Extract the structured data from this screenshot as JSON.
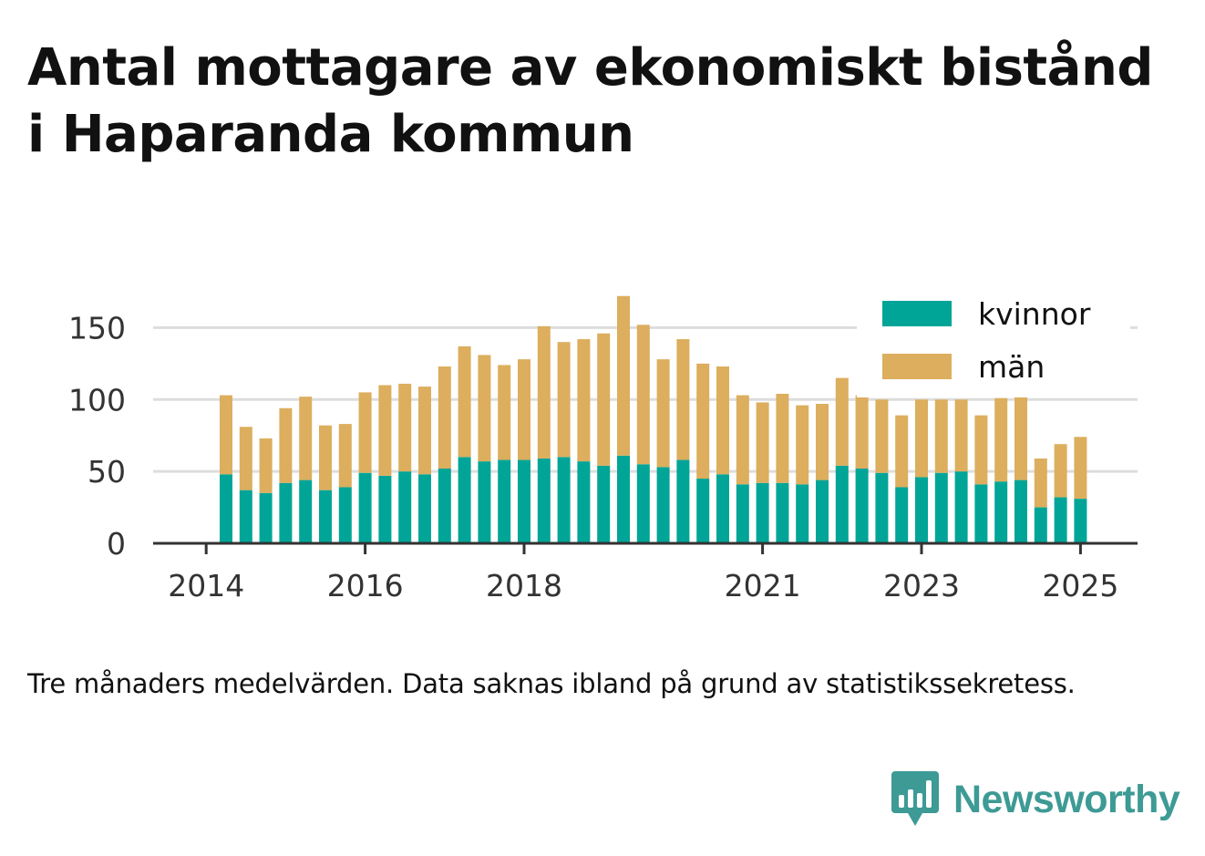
{
  "title": "Antal mottagare av ekonomiskt bistånd i Haparanda kommun",
  "note": "Tre månaders medelvärden. Data saknas ibland på grund av statistikssekretess.",
  "brand": {
    "name": "Newsworthy",
    "icon": "newsworthy-logo-icon",
    "color": "#3d9a95"
  },
  "chart_data": {
    "type": "bar",
    "stacked": true,
    "x_ticks": [
      "2014",
      "2016",
      "2018",
      "2021",
      "2023",
      "2025"
    ],
    "y_ticks": [
      0,
      50,
      100,
      150
    ],
    "ylim": [
      0,
      175
    ],
    "grid": true,
    "legend_position": "top-right",
    "series": [
      {
        "name": "kvinnor",
        "color": "#00a598",
        "values": [
          48,
          37,
          35,
          42,
          44,
          37,
          39,
          49,
          47,
          50,
          48,
          52,
          60,
          57,
          58,
          58,
          59,
          60,
          57,
          54,
          61,
          55,
          53,
          58,
          45,
          48,
          41,
          42,
          42,
          41,
          44,
          54,
          52,
          49,
          39,
          46,
          49,
          50,
          41,
          43,
          44,
          25,
          32,
          31
        ]
      },
      {
        "name": "män",
        "color": "#dcae5e",
        "values": [
          55,
          44,
          38,
          52,
          58,
          45,
          44,
          56,
          63,
          61,
          61,
          71,
          77,
          74,
          66,
          70,
          92,
          80,
          85,
          92,
          111,
          97,
          75,
          84,
          80,
          75,
          62,
          56,
          62,
          55,
          53,
          61,
          51,
          51,
          50,
          54,
          51,
          50,
          48,
          58,
          61,
          34,
          37,
          43
        ]
      }
    ]
  }
}
